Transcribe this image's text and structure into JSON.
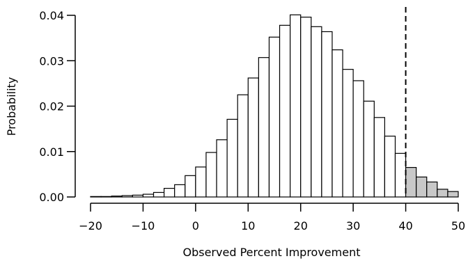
{
  "chart_data": {
    "type": "bar",
    "title": "",
    "xlabel": "Observed Percent Improvement",
    "ylabel": "Probability",
    "xlim": [
      -20,
      50
    ],
    "ylim": [
      0,
      0.04
    ],
    "grid": false,
    "bin_width": 2,
    "threshold_line": 40,
    "x_ticks": [
      -20,
      -10,
      0,
      10,
      20,
      30,
      40,
      50
    ],
    "x_tick_labels": [
      "−20",
      "−10",
      "0",
      "10",
      "20",
      "30",
      "40",
      "50"
    ],
    "y_ticks": [
      0.0,
      0.01,
      0.02,
      0.03,
      0.04
    ],
    "y_tick_labels": [
      "0.00",
      "0.01",
      "0.02",
      "0.03",
      "0.04"
    ],
    "bin_starts": [
      -20,
      -18,
      -16,
      -14,
      -12,
      -10,
      -8,
      -6,
      -4,
      -2,
      0,
      2,
      4,
      6,
      8,
      10,
      12,
      14,
      16,
      18,
      20,
      22,
      24,
      26,
      28,
      30,
      32,
      34,
      36,
      38,
      40,
      42,
      44,
      46,
      48
    ],
    "values": [
      0.0001,
      0.0001,
      0.0002,
      0.0003,
      0.0004,
      0.0006,
      0.001,
      0.0019,
      0.0027,
      0.0047,
      0.0066,
      0.0098,
      0.0126,
      0.0171,
      0.0225,
      0.0262,
      0.0307,
      0.0352,
      0.0378,
      0.0401,
      0.0396,
      0.0375,
      0.0364,
      0.0324,
      0.0281,
      0.0256,
      0.0211,
      0.0175,
      0.0134,
      0.0096,
      0.0065,
      0.0044,
      0.0033,
      0.0017,
      0.0012
    ],
    "colors": {
      "bar_fill": "#ffffff",
      "tail_fill": "#c8c8c8",
      "stroke": "#000000"
    }
  }
}
